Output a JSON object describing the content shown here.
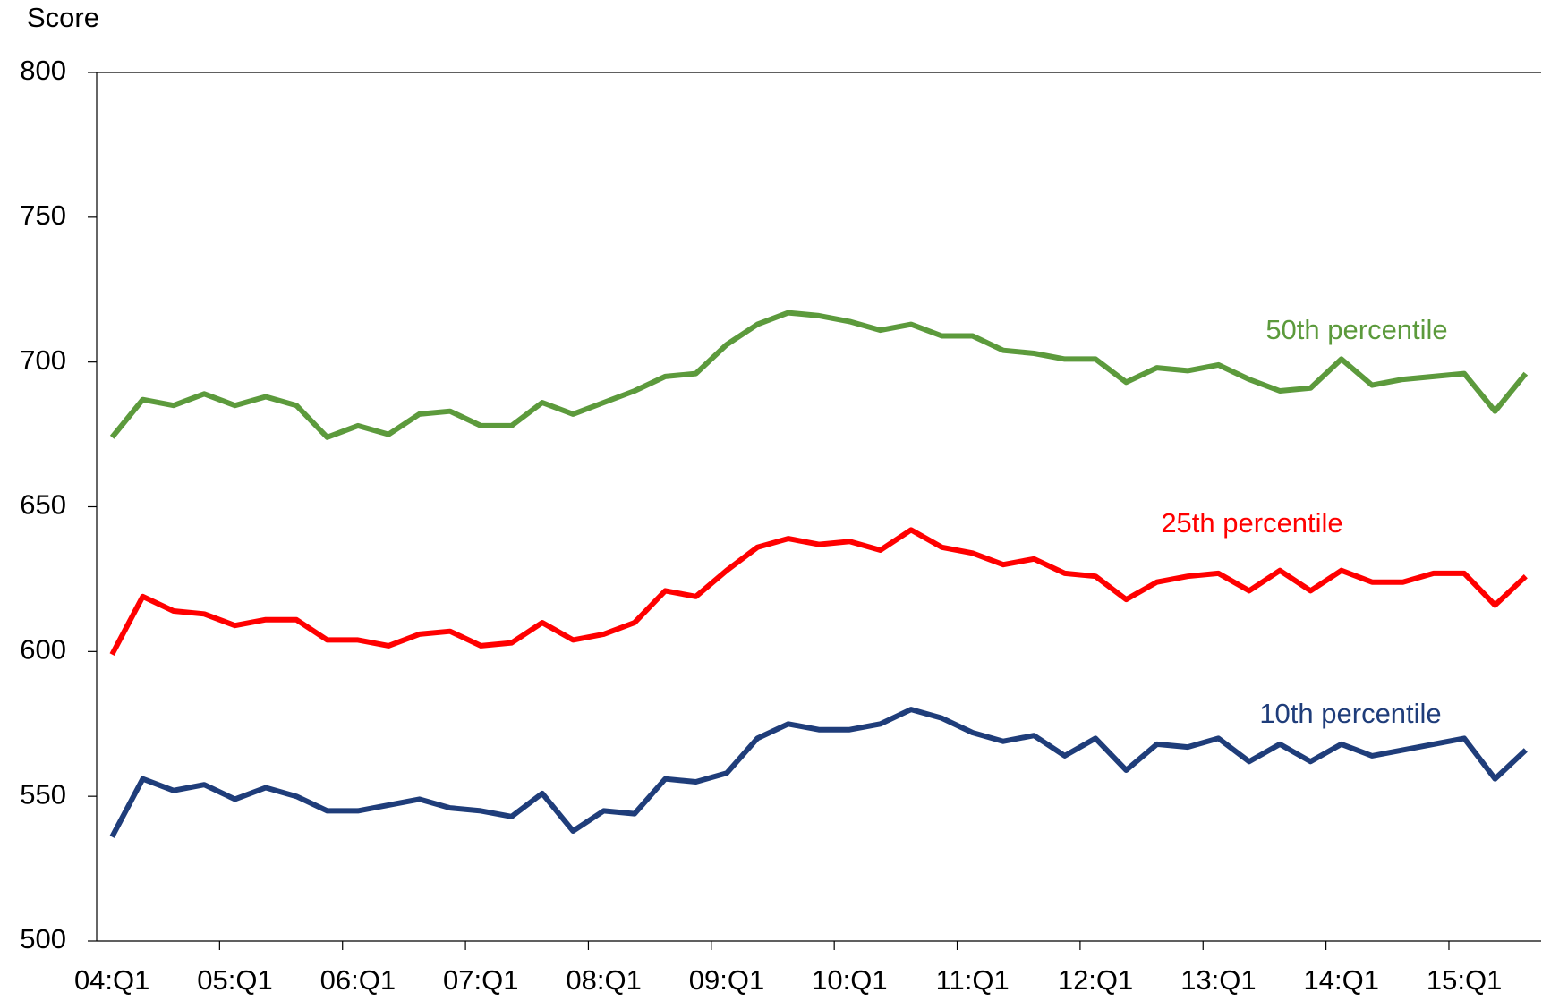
{
  "chart_data": {
    "type": "line",
    "y_label": "Score",
    "categories": [
      "04:Q1",
      null,
      null,
      null,
      "05:Q1",
      null,
      null,
      null,
      "06:Q1",
      null,
      null,
      null,
      "07:Q1",
      null,
      null,
      null,
      "08:Q1",
      null,
      null,
      null,
      "09:Q1",
      null,
      null,
      null,
      "10:Q1",
      null,
      null,
      null,
      "11:Q1",
      null,
      null,
      null,
      "12:Q1",
      null,
      null,
      null,
      "13:Q1",
      null,
      null,
      null,
      "14:Q1",
      null,
      null,
      null,
      "15:Q1",
      null,
      null
    ],
    "series": [
      {
        "name": "50th percentile",
        "color": "#5c9a3c",
        "values": [
          674,
          687,
          685,
          689,
          685,
          688,
          685,
          674,
          678,
          675,
          682,
          683,
          678,
          678,
          686,
          682,
          686,
          690,
          695,
          696,
          706,
          713,
          717,
          716,
          714,
          711,
          713,
          709,
          709,
          704,
          703,
          701,
          701,
          693,
          698,
          697,
          699,
          694,
          690,
          691,
          701,
          692,
          694,
          695,
          696,
          683,
          696
        ]
      },
      {
        "name": "25th percentile",
        "color": "#ff0000",
        "values": [
          599,
          619,
          614,
          613,
          609,
          611,
          611,
          604,
          604,
          602,
          606,
          607,
          602,
          603,
          610,
          604,
          606,
          610,
          621,
          619,
          628,
          636,
          639,
          637,
          638,
          635,
          642,
          636,
          634,
          630,
          632,
          627,
          626,
          618,
          624,
          626,
          627,
          621,
          628,
          621,
          628,
          624,
          624,
          627,
          627,
          616,
          626
        ]
      },
      {
        "name": "10th percentile",
        "color": "#1f3d7a",
        "values": [
          536,
          556,
          552,
          554,
          549,
          553,
          550,
          545,
          545,
          547,
          549,
          546,
          545,
          543,
          551,
          538,
          545,
          544,
          556,
          555,
          558,
          570,
          575,
          573,
          573,
          575,
          580,
          577,
          572,
          569,
          571,
          564,
          570,
          559,
          568,
          567,
          570,
          562,
          568,
          562,
          568,
          564,
          566,
          568,
          570,
          556,
          566
        ]
      }
    ],
    "ylim": [
      500,
      800
    ],
    "yticks": [
      500,
      550,
      600,
      650,
      700,
      750,
      800
    ],
    "grid": false
  }
}
